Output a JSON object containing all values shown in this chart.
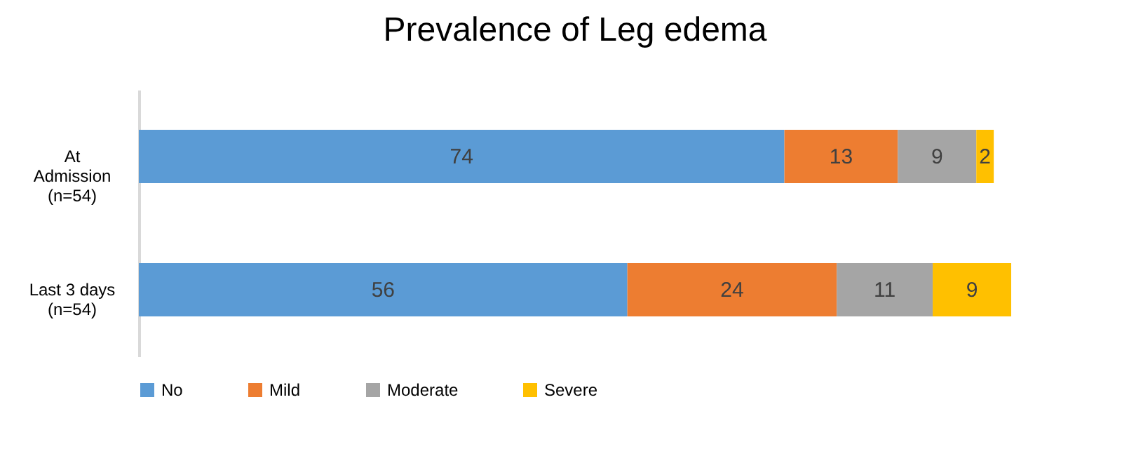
{
  "chart_data": {
    "type": "bar",
    "orientation": "horizontal",
    "stacked": true,
    "title": "Prevalence of Leg edema",
    "categories": [
      "At\nAdmission\n(n=54)",
      "Last 3 days\n(n=54)"
    ],
    "series": [
      {
        "name": "No",
        "color": "#5b9bd5",
        "values": [
          74,
          56
        ]
      },
      {
        "name": "Mild",
        "color": "#ed7d31",
        "values": [
          13,
          24
        ]
      },
      {
        "name": "Moderate",
        "color": "#a5a5a5",
        "values": [
          9,
          11
        ]
      },
      {
        "name": "Severe",
        "color": "#ffc000",
        "values": [
          2,
          9
        ]
      }
    ],
    "data_labels": true,
    "legend": "bottom",
    "grid": false,
    "tick_labels": "y"
  }
}
